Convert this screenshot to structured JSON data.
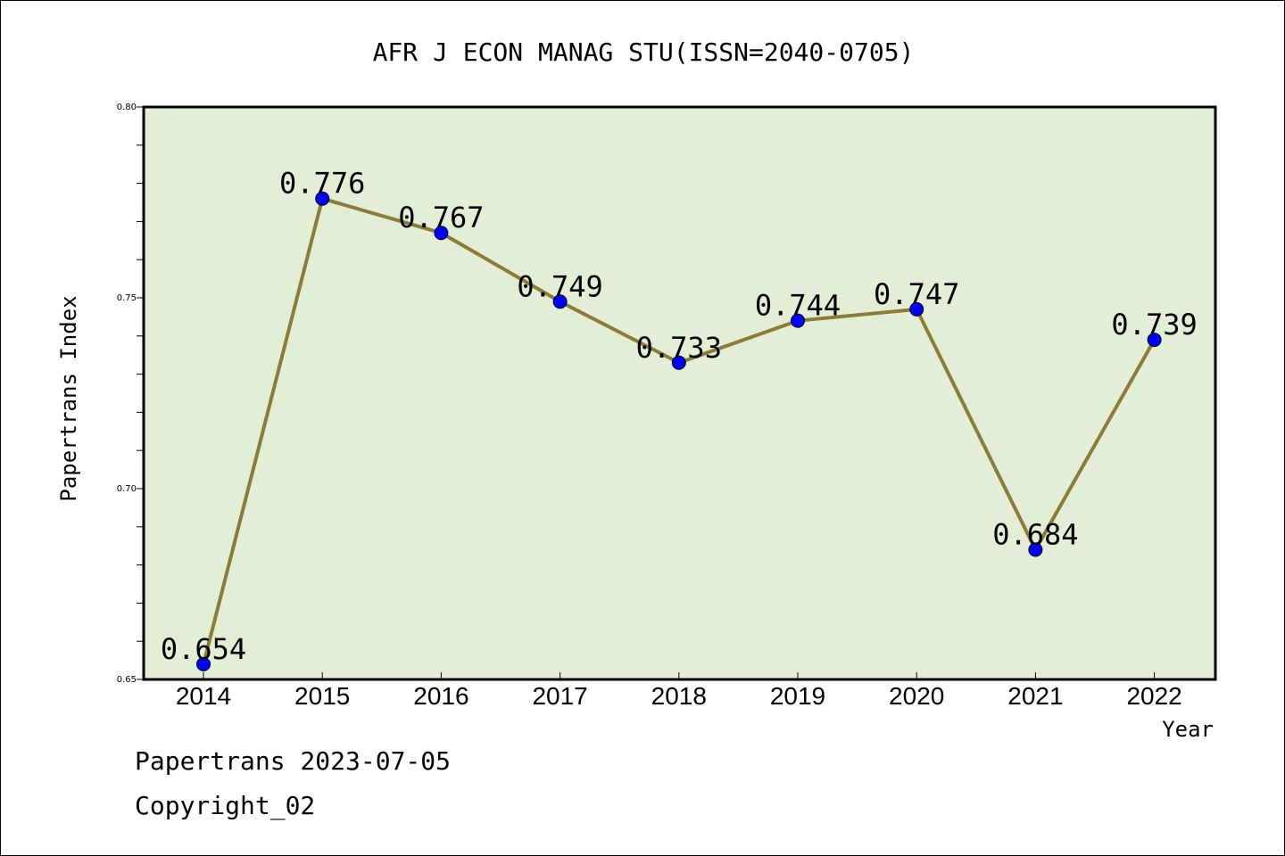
{
  "chart_data": {
    "type": "line",
    "title": "AFR J ECON MANAG STU(ISSN=2040-0705)",
    "xlabel": "Year",
    "ylabel": "Papertrans Index",
    "categories": [
      "2014",
      "2015",
      "2016",
      "2017",
      "2018",
      "2019",
      "2020",
      "2021",
      "2022"
    ],
    "series": [
      {
        "values": [
          0.654,
          0.776,
          0.767,
          0.749,
          0.733,
          0.744,
          0.747,
          0.684,
          0.739
        ],
        "labels": [
          "0.654",
          "0.776",
          "0.767",
          "0.749",
          "0.733",
          "0.744",
          "0.747",
          "0.684",
          "0.739"
        ]
      }
    ],
    "ylim": [
      0.65,
      0.8
    ],
    "yticks": [
      "0.65",
      "0.70",
      "0.75",
      "0.80"
    ],
    "grid": false,
    "colors": {
      "plot_background": "#e2efd6",
      "line": "#8b7d37",
      "marker": "#0000ff"
    }
  },
  "footer": {
    "line1": "Papertrans 2023-07-05",
    "line2": "Copyright_02"
  }
}
